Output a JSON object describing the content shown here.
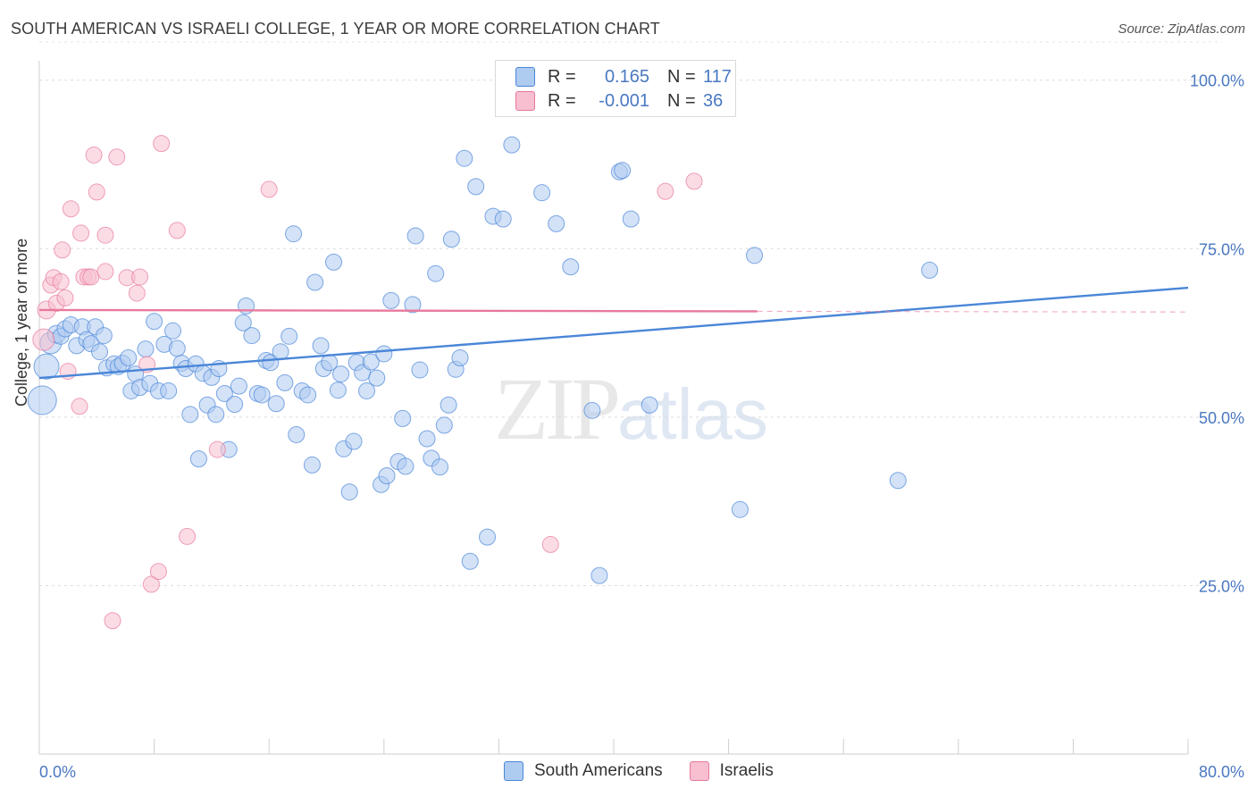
{
  "header": {
    "title": "SOUTH AMERICAN VS ISRAELI COLLEGE, 1 YEAR OR MORE CORRELATION CHART",
    "source": "Source: ZipAtlas.com"
  },
  "watermark": {
    "zip": "ZIP",
    "atlas": "atlas"
  },
  "legend": {
    "rows": [
      {
        "r_label": "R =",
        "r_value": "0.165",
        "n_label": "N =",
        "n_value": "117",
        "color": "#aecbf0"
      },
      {
        "r_label": "R =",
        "r_value": "-0.001",
        "n_label": "N =",
        "n_value": "36",
        "color": "#f7bfd0"
      }
    ]
  },
  "bottom_legend": {
    "items": [
      {
        "label": "South Americans",
        "color": "#aecbf0"
      },
      {
        "label": "Israelis",
        "color": "#f7bfd0"
      }
    ]
  },
  "chart_data": {
    "type": "scatter",
    "title": "SOUTH AMERICAN VS ISRAELI COLLEGE, 1 YEAR OR MORE CORRELATION CHART",
    "xlabel": "",
    "ylabel": "College, 1 year or more",
    "xlim": [
      0,
      80
    ],
    "ylim": [
      0,
      105
    ],
    "x_tick_labels": [
      "0.0%",
      "80.0%"
    ],
    "y_ticks": [
      25,
      50,
      75,
      100
    ],
    "y_tick_labels": [
      "25.0%",
      "50.0%",
      "75.0%",
      "100.0%"
    ],
    "grid": true,
    "legend_position": "top-center",
    "series": [
      {
        "name": "South Americans",
        "color": "#4a86d8",
        "fill": "#aecbf0",
        "trend": {
          "x": [
            0,
            80
          ],
          "y": [
            55.8,
            69.2
          ]
        },
        "points": [
          {
            "x": 0.2,
            "y": 52.5,
            "s": 16
          },
          {
            "x": 0.5,
            "y": 57.5,
            "s": 14
          },
          {
            "x": 0.8,
            "y": 61.0,
            "s": 12
          },
          {
            "x": 1.2,
            "y": 62.3,
            "s": 10
          },
          {
            "x": 1.5,
            "y": 62.0,
            "s": 9
          },
          {
            "x": 1.8,
            "y": 63.1,
            "s": 9
          },
          {
            "x": 2.2,
            "y": 63.7,
            "s": 9
          },
          {
            "x": 2.6,
            "y": 60.6,
            "s": 9
          },
          {
            "x": 3.0,
            "y": 63.4,
            "s": 9
          },
          {
            "x": 3.3,
            "y": 61.5,
            "s": 9
          },
          {
            "x": 3.6,
            "y": 60.9,
            "s": 9
          },
          {
            "x": 3.9,
            "y": 63.4,
            "s": 9
          },
          {
            "x": 4.2,
            "y": 59.7,
            "s": 9
          },
          {
            "x": 4.5,
            "y": 62.1,
            "s": 9
          },
          {
            "x": 4.7,
            "y": 57.3,
            "s": 9
          },
          {
            "x": 5.2,
            "y": 57.9,
            "s": 9
          },
          {
            "x": 5.5,
            "y": 57.5,
            "s": 9
          },
          {
            "x": 5.8,
            "y": 58.0,
            "s": 9
          },
          {
            "x": 6.2,
            "y": 58.8,
            "s": 9
          },
          {
            "x": 6.4,
            "y": 53.9,
            "s": 9
          },
          {
            "x": 6.7,
            "y": 56.4,
            "s": 9
          },
          {
            "x": 7.0,
            "y": 54.4,
            "s": 9
          },
          {
            "x": 7.4,
            "y": 60.1,
            "s": 9
          },
          {
            "x": 7.7,
            "y": 55.0,
            "s": 9
          },
          {
            "x": 8.0,
            "y": 64.2,
            "s": 9
          },
          {
            "x": 8.3,
            "y": 53.9,
            "s": 9
          },
          {
            "x": 8.7,
            "y": 60.8,
            "s": 9
          },
          {
            "x": 9.0,
            "y": 53.9,
            "s": 9
          },
          {
            "x": 9.3,
            "y": 62.8,
            "s": 9
          },
          {
            "x": 9.6,
            "y": 60.2,
            "s": 9
          },
          {
            "x": 9.9,
            "y": 58.0,
            "s": 9
          },
          {
            "x": 10.2,
            "y": 57.2,
            "s": 9
          },
          {
            "x": 10.5,
            "y": 50.4,
            "s": 9
          },
          {
            "x": 10.9,
            "y": 57.9,
            "s": 9
          },
          {
            "x": 11.1,
            "y": 43.8,
            "s": 9
          },
          {
            "x": 11.4,
            "y": 56.5,
            "s": 9
          },
          {
            "x": 11.7,
            "y": 51.8,
            "s": 9
          },
          {
            "x": 12.0,
            "y": 55.9,
            "s": 9
          },
          {
            "x": 12.3,
            "y": 50.4,
            "s": 9
          },
          {
            "x": 12.5,
            "y": 57.2,
            "s": 9
          },
          {
            "x": 12.9,
            "y": 53.5,
            "s": 9
          },
          {
            "x": 13.2,
            "y": 45.2,
            "s": 9
          },
          {
            "x": 13.6,
            "y": 51.9,
            "s": 9
          },
          {
            "x": 13.9,
            "y": 54.6,
            "s": 9
          },
          {
            "x": 14.2,
            "y": 64.0,
            "s": 9
          },
          {
            "x": 14.4,
            "y": 66.5,
            "s": 9
          },
          {
            "x": 14.8,
            "y": 62.1,
            "s": 9
          },
          {
            "x": 15.2,
            "y": 53.5,
            "s": 9
          },
          {
            "x": 15.5,
            "y": 53.3,
            "s": 9
          },
          {
            "x": 15.8,
            "y": 58.4,
            "s": 9
          },
          {
            "x": 16.1,
            "y": 58.1,
            "s": 9
          },
          {
            "x": 16.5,
            "y": 52.0,
            "s": 9
          },
          {
            "x": 16.8,
            "y": 59.7,
            "s": 9
          },
          {
            "x": 17.1,
            "y": 55.1,
            "s": 9
          },
          {
            "x": 17.4,
            "y": 62.0,
            "s": 9
          },
          {
            "x": 17.7,
            "y": 77.2,
            "s": 9
          },
          {
            "x": 17.9,
            "y": 47.4,
            "s": 9
          },
          {
            "x": 18.3,
            "y": 53.9,
            "s": 9
          },
          {
            "x": 18.7,
            "y": 53.3,
            "s": 9
          },
          {
            "x": 19.0,
            "y": 42.9,
            "s": 9
          },
          {
            "x": 19.2,
            "y": 70.0,
            "s": 9
          },
          {
            "x": 19.6,
            "y": 60.6,
            "s": 9
          },
          {
            "x": 19.8,
            "y": 57.2,
            "s": 9
          },
          {
            "x": 20.2,
            "y": 58.1,
            "s": 9
          },
          {
            "x": 20.5,
            "y": 73.0,
            "s": 9
          },
          {
            "x": 20.8,
            "y": 54.0,
            "s": 9
          },
          {
            "x": 21.0,
            "y": 56.4,
            "s": 9
          },
          {
            "x": 21.2,
            "y": 45.3,
            "s": 9
          },
          {
            "x": 21.6,
            "y": 38.9,
            "s": 9
          },
          {
            "x": 21.9,
            "y": 46.4,
            "s": 9
          },
          {
            "x": 22.1,
            "y": 58.1,
            "s": 9
          },
          {
            "x": 22.5,
            "y": 56.6,
            "s": 9
          },
          {
            "x": 22.8,
            "y": 53.9,
            "s": 9
          },
          {
            "x": 23.1,
            "y": 58.2,
            "s": 9
          },
          {
            "x": 23.5,
            "y": 55.8,
            "s": 9
          },
          {
            "x": 23.8,
            "y": 40.0,
            "s": 9
          },
          {
            "x": 24.0,
            "y": 59.4,
            "s": 9
          },
          {
            "x": 24.2,
            "y": 41.3,
            "s": 9
          },
          {
            "x": 24.5,
            "y": 67.3,
            "s": 9
          },
          {
            "x": 25.0,
            "y": 43.4,
            "s": 9
          },
          {
            "x": 25.3,
            "y": 49.8,
            "s": 9
          },
          {
            "x": 25.5,
            "y": 42.7,
            "s": 9
          },
          {
            "x": 26.0,
            "y": 66.7,
            "s": 9
          },
          {
            "x": 26.2,
            "y": 76.9,
            "s": 9
          },
          {
            "x": 26.5,
            "y": 57.0,
            "s": 9
          },
          {
            "x": 27.0,
            "y": 46.8,
            "s": 9
          },
          {
            "x": 27.3,
            "y": 43.9,
            "s": 9
          },
          {
            "x": 27.6,
            "y": 71.3,
            "s": 9
          },
          {
            "x": 27.9,
            "y": 42.6,
            "s": 9
          },
          {
            "x": 28.2,
            "y": 48.8,
            "s": 9
          },
          {
            "x": 28.5,
            "y": 51.8,
            "s": 9
          },
          {
            "x": 28.7,
            "y": 76.4,
            "s": 9
          },
          {
            "x": 29.0,
            "y": 57.1,
            "s": 9
          },
          {
            "x": 29.3,
            "y": 58.8,
            "s": 9
          },
          {
            "x": 29.6,
            "y": 88.4,
            "s": 9
          },
          {
            "x": 30.0,
            "y": 28.6,
            "s": 9
          },
          {
            "x": 30.4,
            "y": 84.2,
            "s": 9
          },
          {
            "x": 31.2,
            "y": 32.2,
            "s": 9
          },
          {
            "x": 31.6,
            "y": 79.8,
            "s": 9
          },
          {
            "x": 32.3,
            "y": 79.4,
            "s": 9
          },
          {
            "x": 32.9,
            "y": 90.4,
            "s": 9
          },
          {
            "x": 35.0,
            "y": 83.3,
            "s": 9
          },
          {
            "x": 36.0,
            "y": 78.7,
            "s": 9
          },
          {
            "x": 37.0,
            "y": 72.3,
            "s": 9
          },
          {
            "x": 38.5,
            "y": 51.0,
            "s": 9
          },
          {
            "x": 39.0,
            "y": 26.5,
            "s": 9
          },
          {
            "x": 40.4,
            "y": 86.4,
            "s": 9
          },
          {
            "x": 40.6,
            "y": 86.6,
            "s": 9
          },
          {
            "x": 41.2,
            "y": 79.4,
            "s": 9
          },
          {
            "x": 42.5,
            "y": 51.8,
            "s": 9
          },
          {
            "x": 48.8,
            "y": 36.3,
            "s": 9
          },
          {
            "x": 49.8,
            "y": 74.0,
            "s": 9
          },
          {
            "x": 59.8,
            "y": 40.6,
            "s": 9
          },
          {
            "x": 62.0,
            "y": 71.8,
            "s": 9
          }
        ]
      },
      {
        "name": "Israelis",
        "color": "#e8799c",
        "fill": "#f7bfd0",
        "trend": {
          "x": [
            0,
            50
          ],
          "y": [
            65.9,
            65.7
          ]
        },
        "trend_dashed": {
          "x": [
            50,
            80
          ],
          "y": [
            65.7,
            65.6
          ]
        },
        "points": [
          {
            "x": 0.3,
            "y": 61.5,
            "s": 12
          },
          {
            "x": 0.5,
            "y": 65.9,
            "s": 10
          },
          {
            "x": 0.8,
            "y": 69.6,
            "s": 9
          },
          {
            "x": 1.0,
            "y": 70.7,
            "s": 9
          },
          {
            "x": 1.2,
            "y": 66.9,
            "s": 9
          },
          {
            "x": 1.5,
            "y": 70.1,
            "s": 9
          },
          {
            "x": 1.6,
            "y": 74.8,
            "s": 9
          },
          {
            "x": 1.8,
            "y": 67.7,
            "s": 9
          },
          {
            "x": 2.0,
            "y": 56.8,
            "s": 9
          },
          {
            "x": 2.2,
            "y": 80.9,
            "s": 9
          },
          {
            "x": 2.8,
            "y": 51.6,
            "s": 9
          },
          {
            "x": 2.9,
            "y": 77.3,
            "s": 9
          },
          {
            "x": 3.1,
            "y": 70.8,
            "s": 9
          },
          {
            "x": 3.4,
            "y": 70.8,
            "s": 9
          },
          {
            "x": 3.6,
            "y": 70.8,
            "s": 9
          },
          {
            "x": 3.8,
            "y": 88.9,
            "s": 9
          },
          {
            "x": 4.0,
            "y": 83.4,
            "s": 9
          },
          {
            "x": 4.6,
            "y": 71.6,
            "s": 9
          },
          {
            "x": 4.6,
            "y": 77.0,
            "s": 9
          },
          {
            "x": 5.1,
            "y": 19.8,
            "s": 9
          },
          {
            "x": 5.4,
            "y": 88.6,
            "s": 9
          },
          {
            "x": 6.1,
            "y": 70.7,
            "s": 9
          },
          {
            "x": 6.8,
            "y": 68.4,
            "s": 9
          },
          {
            "x": 7.0,
            "y": 70.8,
            "s": 9
          },
          {
            "x": 7.5,
            "y": 57.8,
            "s": 9
          },
          {
            "x": 7.8,
            "y": 25.2,
            "s": 9
          },
          {
            "x": 8.3,
            "y": 27.1,
            "s": 9
          },
          {
            "x": 8.5,
            "y": 90.6,
            "s": 9
          },
          {
            "x": 9.6,
            "y": 77.7,
            "s": 9
          },
          {
            "x": 10.3,
            "y": 32.3,
            "s": 9
          },
          {
            "x": 12.4,
            "y": 45.2,
            "s": 9
          },
          {
            "x": 16.0,
            "y": 83.8,
            "s": 9
          },
          {
            "x": 35.6,
            "y": 31.1,
            "s": 9
          },
          {
            "x": 43.6,
            "y": 83.5,
            "s": 9
          },
          {
            "x": 45.6,
            "y": 85.0,
            "s": 9
          }
        ]
      }
    ]
  }
}
